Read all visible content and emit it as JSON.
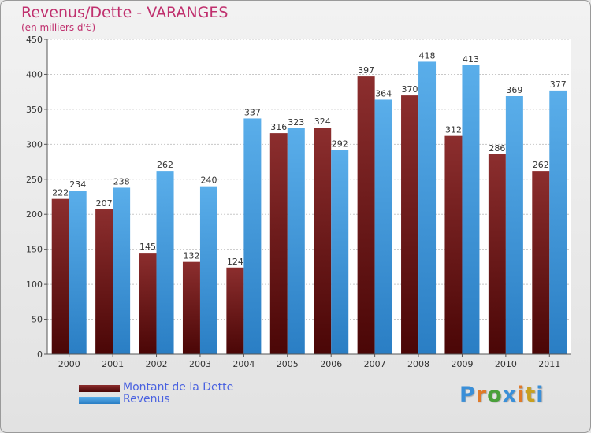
{
  "header": {
    "title": "Revenus/Dette - VARANGES",
    "subtitle": "(en milliers d'€)"
  },
  "chart_data": {
    "type": "bar",
    "categories": [
      "2000",
      "2001",
      "2002",
      "2003",
      "2004",
      "2005",
      "2006",
      "2007",
      "2008",
      "2009",
      "2010",
      "2011"
    ],
    "series": [
      {
        "name": "Montant de la Dette",
        "color": "#7a1c1c",
        "values": [
          222,
          207,
          145,
          132,
          124,
          316,
          324,
          397,
          370,
          312,
          286,
          262
        ]
      },
      {
        "name": "Revenus",
        "color": "#4a9fe0",
        "values": [
          234,
          238,
          262,
          240,
          337,
          323,
          292,
          364,
          418,
          413,
          369,
          377
        ]
      }
    ],
    "ylim": [
      0,
      450
    ],
    "yticks": [
      0,
      50,
      100,
      150,
      200,
      250,
      300,
      350,
      400,
      450
    ],
    "grid": true,
    "legend_position": "bottom-left"
  },
  "branding": {
    "logo_letters": [
      "P",
      "r",
      "o",
      "x",
      "i",
      "t",
      "i"
    ],
    "logo_colors": [
      "#3a8fd8",
      "#e07a2a",
      "#4aa03a",
      "#3a8fd8",
      "#e07a2a",
      "#c8a020",
      "#3a8fd8"
    ]
  }
}
